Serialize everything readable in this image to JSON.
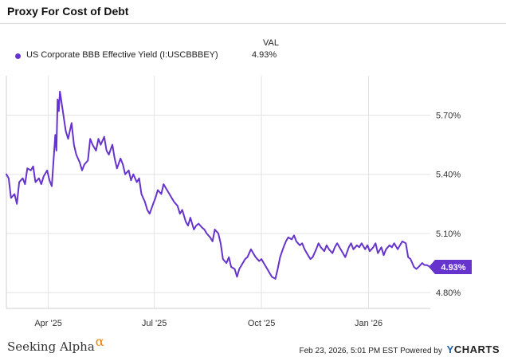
{
  "chart_title": "Proxy For Cost of Debt",
  "legend": {
    "value_header": "VAL",
    "series_label": "US Corporate BBB Effective Yield (I:USCBBBEY)",
    "series_value": "4.93%"
  },
  "footer": {
    "brand": "Seeking Alpha",
    "brand_mark": "α",
    "timestamp": "Feb 23, 2026, 5:01 PM EST",
    "powered_by": "Powered by",
    "provider_logo_y": "Y",
    "provider_logo_rest": "CHARTS"
  },
  "colors": {
    "series": "#6633cc",
    "grid": "#e3e3e3",
    "axis_text": "#333333"
  },
  "chart_data": {
    "type": "line",
    "title": "Proxy For Cost of Debt",
    "xlabel": "",
    "ylabel": "",
    "x_range": [
      "2025-02-24",
      "2026-02-23"
    ],
    "ylim": [
      4.72,
      5.9
    ],
    "y_ticks": [
      4.8,
      5.1,
      5.4,
      5.7
    ],
    "y_tick_labels": [
      "4.80%",
      "5.10%",
      "5.40%",
      "5.70%"
    ],
    "x_ticks": [
      "2025-04-01",
      "2025-07-01",
      "2025-10-01",
      "2026-01-01"
    ],
    "x_tick_labels": [
      "Apr '25",
      "Jul '25",
      "Oct '25",
      "Jan '26"
    ],
    "grid": true,
    "last_value_label": "4.93%",
    "series": [
      {
        "name": "US Corporate BBB Effective Yield (I:USCBBBEY)",
        "points": [
          [
            "2025-02-24",
            5.4
          ],
          [
            "2025-02-26",
            5.38
          ],
          [
            "2025-02-28",
            5.28
          ],
          [
            "2025-03-03",
            5.3
          ],
          [
            "2025-03-05",
            5.25
          ],
          [
            "2025-03-07",
            5.36
          ],
          [
            "2025-03-10",
            5.38
          ],
          [
            "2025-03-12",
            5.35
          ],
          [
            "2025-03-14",
            5.43
          ],
          [
            "2025-03-17",
            5.42
          ],
          [
            "2025-03-19",
            5.44
          ],
          [
            "2025-03-21",
            5.36
          ],
          [
            "2025-03-24",
            5.38
          ],
          [
            "2025-03-26",
            5.35
          ],
          [
            "2025-03-28",
            5.39
          ],
          [
            "2025-03-31",
            5.42
          ],
          [
            "2025-04-02",
            5.37
          ],
          [
            "2025-04-04",
            5.34
          ],
          [
            "2025-04-07",
            5.6
          ],
          [
            "2025-04-08",
            5.52
          ],
          [
            "2025-04-09",
            5.78
          ],
          [
            "2025-04-10",
            5.72
          ],
          [
            "2025-04-11",
            5.82
          ],
          [
            "2025-04-14",
            5.7
          ],
          [
            "2025-04-16",
            5.62
          ],
          [
            "2025-04-18",
            5.58
          ],
          [
            "2025-04-21",
            5.66
          ],
          [
            "2025-04-23",
            5.55
          ],
          [
            "2025-04-25",
            5.5
          ],
          [
            "2025-04-28",
            5.46
          ],
          [
            "2025-04-30",
            5.42
          ],
          [
            "2025-05-02",
            5.45
          ],
          [
            "2025-05-05",
            5.47
          ],
          [
            "2025-05-07",
            5.58
          ],
          [
            "2025-05-09",
            5.55
          ],
          [
            "2025-05-12",
            5.52
          ],
          [
            "2025-05-14",
            5.58
          ],
          [
            "2025-05-16",
            5.55
          ],
          [
            "2025-05-19",
            5.59
          ],
          [
            "2025-05-21",
            5.52
          ],
          [
            "2025-05-23",
            5.5
          ],
          [
            "2025-05-26",
            5.55
          ],
          [
            "2025-05-28",
            5.48
          ],
          [
            "2025-05-30",
            5.43
          ],
          [
            "2025-06-02",
            5.48
          ],
          [
            "2025-06-04",
            5.45
          ],
          [
            "2025-06-06",
            5.4
          ],
          [
            "2025-06-09",
            5.42
          ],
          [
            "2025-06-11",
            5.37
          ],
          [
            "2025-06-13",
            5.4
          ],
          [
            "2025-06-16",
            5.36
          ],
          [
            "2025-06-18",
            5.38
          ],
          [
            "2025-06-20",
            5.3
          ],
          [
            "2025-06-23",
            5.26
          ],
          [
            "2025-06-25",
            5.22
          ],
          [
            "2025-06-27",
            5.2
          ],
          [
            "2025-06-30",
            5.25
          ],
          [
            "2025-07-02",
            5.28
          ],
          [
            "2025-07-04",
            5.32
          ],
          [
            "2025-07-07",
            5.3
          ],
          [
            "2025-07-09",
            5.35
          ],
          [
            "2025-07-11",
            5.33
          ],
          [
            "2025-07-14",
            5.3
          ],
          [
            "2025-07-16",
            5.28
          ],
          [
            "2025-07-18",
            5.26
          ],
          [
            "2025-07-21",
            5.24
          ],
          [
            "2025-07-23",
            5.2
          ],
          [
            "2025-07-25",
            5.22
          ],
          [
            "2025-07-28",
            5.16
          ],
          [
            "2025-07-30",
            5.14
          ],
          [
            "2025-08-01",
            5.18
          ],
          [
            "2025-08-04",
            5.12
          ],
          [
            "2025-08-06",
            5.14
          ],
          [
            "2025-08-08",
            5.15
          ],
          [
            "2025-08-11",
            5.13
          ],
          [
            "2025-08-13",
            5.12
          ],
          [
            "2025-08-15",
            5.1
          ],
          [
            "2025-08-18",
            5.08
          ],
          [
            "2025-08-20",
            5.06
          ],
          [
            "2025-08-22",
            5.12
          ],
          [
            "2025-08-25",
            5.1
          ],
          [
            "2025-08-27",
            5.05
          ],
          [
            "2025-08-29",
            4.97
          ],
          [
            "2025-09-01",
            4.95
          ],
          [
            "2025-09-03",
            4.98
          ],
          [
            "2025-09-05",
            4.93
          ],
          [
            "2025-09-08",
            4.92
          ],
          [
            "2025-09-10",
            4.88
          ],
          [
            "2025-09-12",
            4.92
          ],
          [
            "2025-09-15",
            4.95
          ],
          [
            "2025-09-17",
            4.97
          ],
          [
            "2025-09-19",
            4.98
          ],
          [
            "2025-09-22",
            5.02
          ],
          [
            "2025-09-24",
            5.0
          ],
          [
            "2025-09-26",
            4.98
          ],
          [
            "2025-09-29",
            4.96
          ],
          [
            "2025-10-01",
            4.97
          ],
          [
            "2025-10-03",
            4.95
          ],
          [
            "2025-10-06",
            4.92
          ],
          [
            "2025-10-08",
            4.9
          ],
          [
            "2025-10-10",
            4.88
          ],
          [
            "2025-10-13",
            4.87
          ],
          [
            "2025-10-15",
            4.92
          ],
          [
            "2025-10-17",
            4.98
          ],
          [
            "2025-10-20",
            5.03
          ],
          [
            "2025-10-22",
            5.06
          ],
          [
            "2025-10-24",
            5.08
          ],
          [
            "2025-10-27",
            5.07
          ],
          [
            "2025-10-29",
            5.09
          ],
          [
            "2025-10-31",
            5.06
          ],
          [
            "2025-11-03",
            5.04
          ],
          [
            "2025-11-05",
            5.05
          ],
          [
            "2025-11-07",
            5.02
          ],
          [
            "2025-11-10",
            4.99
          ],
          [
            "2025-11-12",
            4.97
          ],
          [
            "2025-11-14",
            4.98
          ],
          [
            "2025-11-17",
            5.02
          ],
          [
            "2025-11-19",
            5.05
          ],
          [
            "2025-11-21",
            5.03
          ],
          [
            "2025-11-24",
            5.01
          ],
          [
            "2025-11-26",
            5.04
          ],
          [
            "2025-11-28",
            5.02
          ],
          [
            "2025-12-01",
            5.0
          ],
          [
            "2025-12-03",
            5.03
          ],
          [
            "2025-12-05",
            5.05
          ],
          [
            "2025-12-08",
            5.02
          ],
          [
            "2025-12-10",
            5.0
          ],
          [
            "2025-12-12",
            4.98
          ],
          [
            "2025-12-15",
            5.03
          ],
          [
            "2025-12-17",
            5.05
          ],
          [
            "2025-12-19",
            5.02
          ],
          [
            "2025-12-22",
            5.04
          ],
          [
            "2025-12-24",
            5.03
          ],
          [
            "2025-12-26",
            5.05
          ],
          [
            "2025-12-29",
            5.02
          ],
          [
            "2025-12-31",
            5.04
          ],
          [
            "2026-01-02",
            5.01
          ],
          [
            "2026-01-05",
            5.03
          ],
          [
            "2026-01-07",
            5.05
          ],
          [
            "2026-01-09",
            5.0
          ],
          [
            "2026-01-12",
            5.03
          ],
          [
            "2026-01-14",
            4.99
          ],
          [
            "2026-01-16",
            5.02
          ],
          [
            "2026-01-19",
            5.04
          ],
          [
            "2026-01-21",
            5.03
          ],
          [
            "2026-01-23",
            5.05
          ],
          [
            "2026-01-26",
            5.02
          ],
          [
            "2026-01-28",
            5.04
          ],
          [
            "2026-01-30",
            5.06
          ],
          [
            "2026-02-02",
            5.05
          ],
          [
            "2026-02-04",
            4.98
          ],
          [
            "2026-02-06",
            4.97
          ],
          [
            "2026-02-09",
            4.93
          ],
          [
            "2026-02-11",
            4.92
          ],
          [
            "2026-02-13",
            4.93
          ],
          [
            "2026-02-16",
            4.95
          ],
          [
            "2026-02-18",
            4.94
          ],
          [
            "2026-02-20",
            4.94
          ],
          [
            "2026-02-23",
            4.93
          ]
        ]
      }
    ]
  }
}
